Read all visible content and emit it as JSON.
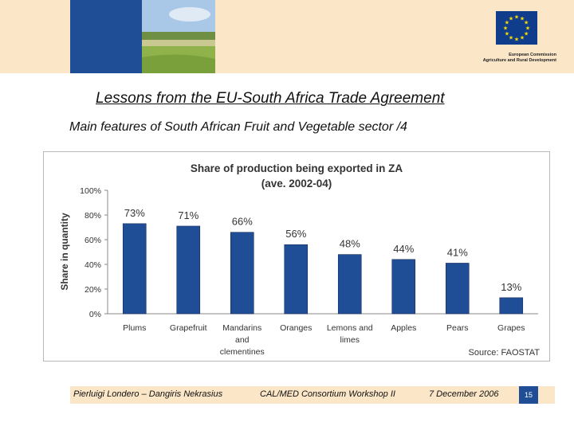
{
  "header": {
    "logo_lines": [
      "European Commission",
      "Agriculture and Rural Development"
    ]
  },
  "slide": {
    "title": "Lessons from the EU-South Africa Trade Agreement",
    "subtitle": "Main features of South African Fruit and Vegetable sector /4"
  },
  "chart_data": {
    "type": "bar",
    "title_lines": [
      "Share of production being exported in ZA",
      "(ave. 2002-04)"
    ],
    "ylabel": "Share in quantity",
    "source": "Source: FAOSTAT",
    "categories": [
      [
        "Plums"
      ],
      [
        "Grapefruit"
      ],
      [
        "Mandarins",
        "and",
        "clementines"
      ],
      [
        "Oranges"
      ],
      [
        "Lemons and",
        "limes"
      ],
      [
        "Apples"
      ],
      [
        "Pears"
      ],
      [
        "Grapes"
      ]
    ],
    "values": [
      73,
      71,
      66,
      56,
      48,
      44,
      41,
      13
    ],
    "data_labels": [
      "73%",
      "71%",
      "66%",
      "56%",
      "48%",
      "44%",
      "41%",
      "13%"
    ],
    "yticks": [
      "0%",
      "20%",
      "40%",
      "60%",
      "80%",
      "100%"
    ],
    "ylim": [
      0,
      100
    ],
    "bar_color": "#1f4e96",
    "grid": false,
    "legend": "none"
  },
  "footer": {
    "authors": "Pierluigi Londero – Dangiris Nekrasius",
    "event": "CAL/MED Consortium Workshop II",
    "date": "7 December 2006",
    "page": "15"
  }
}
